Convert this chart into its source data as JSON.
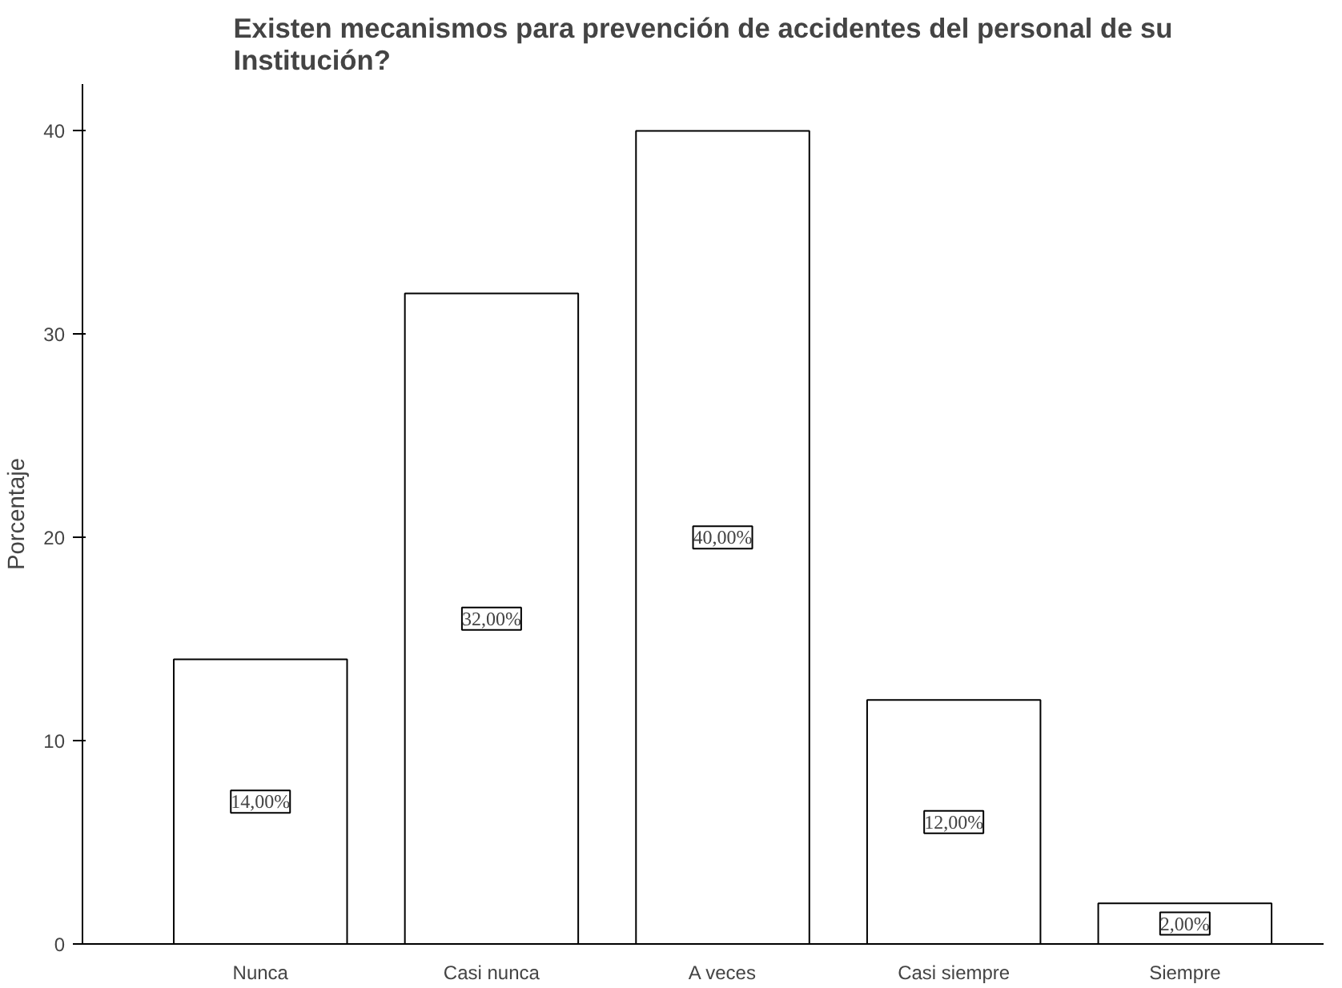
{
  "chart_data": {
    "type": "bar",
    "title": "Existen mecanismos para prevención de accidentes del personal de su\nInstitución?",
    "ylabel": "Porcentaje",
    "categories": [
      "Nunca",
      "Casi nunca",
      "A veces",
      "Casi siempre",
      "Siempre"
    ],
    "values": [
      14,
      32,
      40,
      12,
      2
    ],
    "value_labels": [
      "14,00%",
      "32,00%",
      "40,00%",
      "12,00%",
      "2,00%"
    ],
    "color": "#ffffff",
    "ylim": [
      0,
      42.3
    ],
    "yticks": [
      0,
      10,
      20,
      30,
      40
    ],
    "grid": false
  }
}
